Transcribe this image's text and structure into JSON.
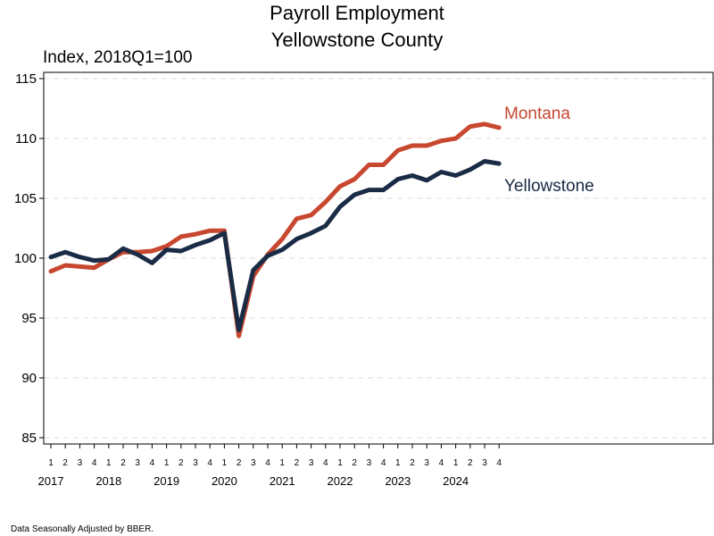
{
  "chart_data": {
    "type": "line",
    "title": "Payroll Employment",
    "subtitle": "Yellowstone County",
    "ylabel": "Index, 2018Q1=100",
    "xlabel": "",
    "ylim": [
      85,
      115
    ],
    "yticks": [
      85,
      90,
      95,
      100,
      105,
      110,
      115
    ],
    "grid": "horizontal dashed",
    "quarter_labels": [
      "1",
      "2",
      "3",
      "4",
      "1",
      "2",
      "3",
      "4",
      "1",
      "2",
      "3",
      "4",
      "1",
      "2",
      "3",
      "4",
      "1",
      "2",
      "3",
      "4",
      "1",
      "2",
      "3",
      "4",
      "1",
      "2",
      "3",
      "4",
      "1",
      "2",
      "3",
      "4"
    ],
    "year_labels": [
      "2017",
      "2018",
      "2019",
      "2020",
      "2021",
      "2022",
      "2023",
      "2024"
    ],
    "x": [
      "2017Q1",
      "2017Q2",
      "2017Q3",
      "2017Q4",
      "2018Q1",
      "2018Q2",
      "2018Q3",
      "2018Q4",
      "2019Q1",
      "2019Q2",
      "2019Q3",
      "2019Q4",
      "2020Q1",
      "2020Q2",
      "2020Q3",
      "2020Q4",
      "2021Q1",
      "2021Q2",
      "2021Q3",
      "2021Q4",
      "2022Q1",
      "2022Q2",
      "2022Q3",
      "2022Q4",
      "2023Q1",
      "2023Q2",
      "2023Q3",
      "2023Q4",
      "2024Q1",
      "2024Q2",
      "2024Q3",
      "2024Q4"
    ],
    "series": [
      {
        "name": "Montana",
        "color": "#c8472f",
        "values": [
          98.9,
          99.4,
          99.3,
          99.2,
          99.9,
          100.5,
          100.5,
          100.6,
          101.0,
          101.8,
          102.0,
          102.3,
          102.3,
          93.5,
          98.5,
          100.3,
          101.6,
          103.3,
          103.6,
          104.7,
          106.0,
          106.6,
          107.8,
          107.8,
          109.0,
          109.4,
          109.4,
          109.8,
          110.0,
          111.0,
          111.2,
          110.9
        ],
        "label_position": "right-end"
      },
      {
        "name": "Yellowstone",
        "color": "#1a2b45",
        "values": [
          100.1,
          100.5,
          100.1,
          99.8,
          99.9,
          100.8,
          100.3,
          99.6,
          100.7,
          100.6,
          101.1,
          101.5,
          102.1,
          94.0,
          99.0,
          100.2,
          100.7,
          101.6,
          102.1,
          102.7,
          104.3,
          105.3,
          105.7,
          105.7,
          106.6,
          106.9,
          106.5,
          107.2,
          106.9,
          107.4,
          108.1,
          107.9
        ],
        "label_position": "right-end"
      }
    ],
    "note": "Data Seasonally Adjusted by BBER."
  }
}
